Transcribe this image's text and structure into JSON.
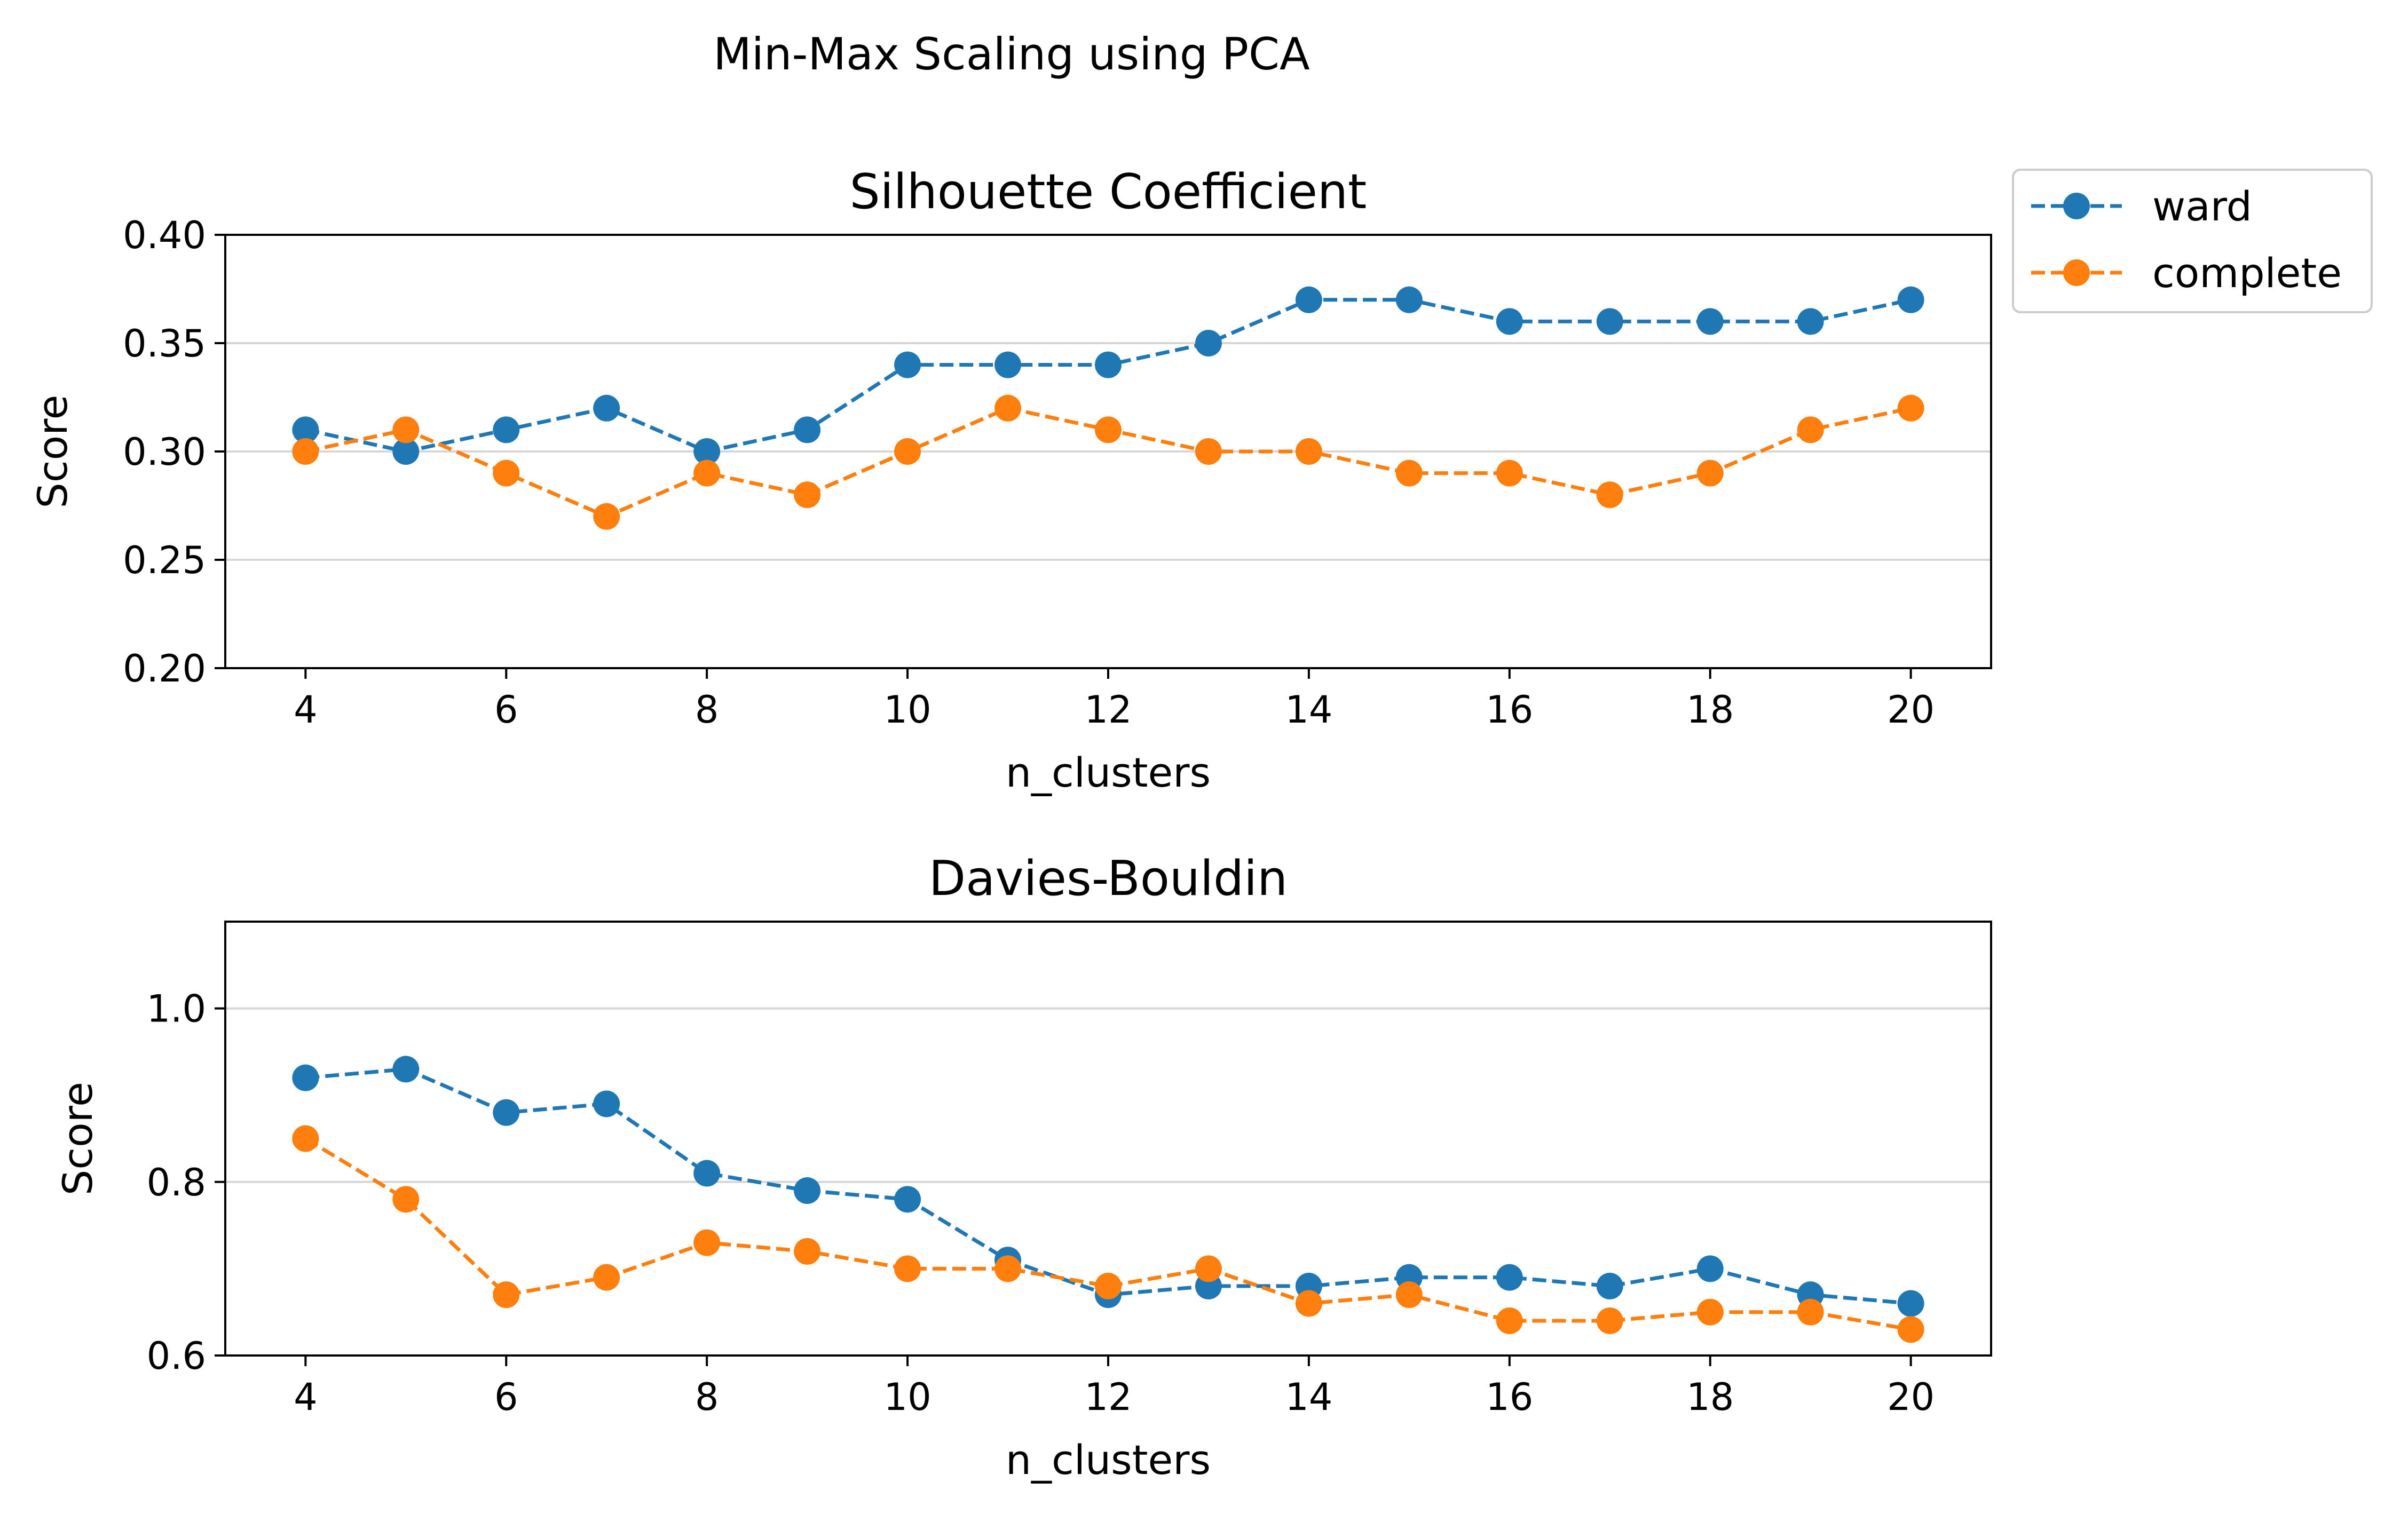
{
  "figure": {
    "suptitle": "Min-Max Scaling using PCA"
  },
  "legend": {
    "placement": "upper right, outside plot area",
    "entries": [
      {
        "label": "ward",
        "color": "#1f77b4"
      },
      {
        "label": "complete",
        "color": "#ff7f0e"
      }
    ]
  },
  "chart_data": [
    {
      "type": "line",
      "title": "Silhouette Coefficient",
      "xlabel": "n_clusters",
      "ylabel": "Score",
      "xlim": [
        3.2,
        20.8
      ],
      "ylim": [
        0.2,
        0.4
      ],
      "xticks": [
        4,
        6,
        8,
        10,
        12,
        14,
        16,
        18,
        20
      ],
      "yticks": [
        0.2,
        0.25,
        0.3,
        0.35,
        0.4
      ],
      "ytick_labels": [
        "0.20",
        "0.25",
        "0.30",
        "0.35",
        "0.40"
      ],
      "grid": "horizontal",
      "line_style": "dashed with circle markers",
      "x": [
        4,
        5,
        6,
        7,
        8,
        9,
        10,
        11,
        12,
        13,
        14,
        15,
        16,
        17,
        18,
        19,
        20
      ],
      "series": [
        {
          "name": "ward",
          "color": "#1f77b4",
          "values": [
            0.31,
            0.3,
            0.31,
            0.32,
            0.3,
            0.31,
            0.34,
            0.34,
            0.34,
            0.35,
            0.37,
            0.37,
            0.36,
            0.36,
            0.36,
            0.36,
            0.37
          ]
        },
        {
          "name": "complete",
          "color": "#ff7f0e",
          "values": [
            0.3,
            0.31,
            0.29,
            0.27,
            0.29,
            0.28,
            0.3,
            0.32,
            0.31,
            0.3,
            0.3,
            0.29,
            0.29,
            0.28,
            0.29,
            0.31,
            0.32
          ]
        }
      ]
    },
    {
      "type": "line",
      "title": "Davies-Bouldin",
      "xlabel": "n_clusters",
      "ylabel": "Score",
      "xlim": [
        3.2,
        20.8
      ],
      "ylim": [
        0.6,
        1.1
      ],
      "xticks": [
        4,
        6,
        8,
        10,
        12,
        14,
        16,
        18,
        20
      ],
      "yticks": [
        0.6,
        0.8,
        1.0
      ],
      "ytick_labels": [
        "0.6",
        "0.8",
        "1.0"
      ],
      "grid": "horizontal",
      "line_style": "dashed with circle markers",
      "x": [
        4,
        5,
        6,
        7,
        8,
        9,
        10,
        11,
        12,
        13,
        14,
        15,
        16,
        17,
        18,
        19,
        20
      ],
      "series": [
        {
          "name": "ward",
          "color": "#1f77b4",
          "values": [
            0.92,
            0.93,
            0.88,
            0.89,
            0.81,
            0.79,
            0.78,
            0.71,
            0.67,
            0.68,
            0.68,
            0.69,
            0.69,
            0.68,
            0.7,
            0.67,
            0.66
          ]
        },
        {
          "name": "complete",
          "color": "#ff7f0e",
          "values": [
            0.85,
            0.78,
            0.67,
            0.69,
            0.73,
            0.72,
            0.7,
            0.7,
            0.68,
            0.7,
            0.66,
            0.67,
            0.64,
            0.64,
            0.65,
            0.65,
            0.63
          ]
        }
      ]
    }
  ]
}
